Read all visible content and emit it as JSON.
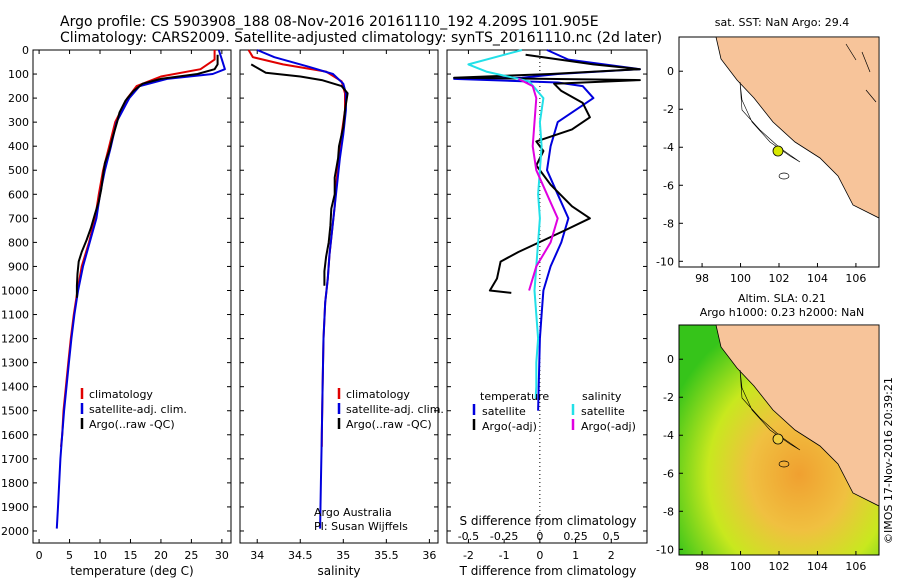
{
  "header": {
    "line1": "Argo profile: CS 5903908_188 08-Nov-2016 20161110_192 4.209S 101.905E",
    "line2": "Climatology: CARS2009. Satellite-adjusted climatology: synTS_20161110.nc (2d later)"
  },
  "colors": {
    "climatology": "#e00000",
    "satellite": "#0000dd",
    "argo": "#000000",
    "sal_sat": "#22e0e8",
    "sal_argo": "#e000e0",
    "land": "#f7c49a",
    "ocean": "#ffffff",
    "ssh_low": "#36c41a",
    "ssh_mid": "#c8e81e",
    "ssh_high": "#f0a030"
  },
  "chart_data": [
    {
      "type": "line",
      "xlabel": "temperature (deg C)",
      "ylim": [
        0,
        2050
      ],
      "xlim": [
        -1,
        31.5
      ],
      "xticks": [
        "0",
        "5",
        "10",
        "15",
        "20",
        "25",
        "30"
      ],
      "yticks": [
        "0",
        "100",
        "200",
        "300",
        "400",
        "500",
        "600",
        "700",
        "800",
        "900",
        "1000",
        "1100",
        "1200",
        "1300",
        "1400",
        "1500",
        "1600",
        "1700",
        "1800",
        "1900",
        "2000"
      ],
      "legend": [
        "climatology",
        "satellite-adj. clim.",
        "Argo(..raw -QC)"
      ],
      "series": [
        {
          "name": "climatology",
          "color": "#e00000",
          "points": [
            [
              28.8,
              0
            ],
            [
              28.8,
              40
            ],
            [
              26.5,
              80
            ],
            [
              20,
              110
            ],
            [
              16,
              150
            ],
            [
              14.5,
              200
            ],
            [
              12.5,
              300
            ],
            [
              11.5,
              400
            ],
            [
              10.5,
              500
            ],
            [
              9.8,
              600
            ],
            [
              9.2,
              700
            ],
            [
              8.2,
              800
            ],
            [
              7,
              900
            ],
            [
              6.3,
              1000
            ],
            [
              5.7,
              1100
            ],
            [
              5.2,
              1200
            ],
            [
              4.8,
              1300
            ],
            [
              4.4,
              1400
            ],
            [
              4,
              1500
            ],
            [
              3.8,
              1600
            ],
            [
              3.6,
              1650
            ]
          ]
        },
        {
          "name": "satellite-adj. clim.",
          "color": "#0000dd",
          "points": [
            [
              29.5,
              0
            ],
            [
              30,
              40
            ],
            [
              30.5,
              80
            ],
            [
              28.5,
              100
            ],
            [
              21,
              120
            ],
            [
              16.5,
              150
            ],
            [
              14.8,
              200
            ],
            [
              12.7,
              300
            ],
            [
              11.8,
              400
            ],
            [
              10.8,
              500
            ],
            [
              10,
              600
            ],
            [
              9.4,
              700
            ],
            [
              8.3,
              800
            ],
            [
              7.2,
              900
            ],
            [
              6.4,
              1000
            ],
            [
              5.8,
              1100
            ],
            [
              5.3,
              1200
            ],
            [
              4.9,
              1300
            ],
            [
              4.5,
              1400
            ],
            [
              4.1,
              1500
            ],
            [
              3.8,
              1600
            ],
            [
              3.5,
              1700
            ],
            [
              3.3,
              1800
            ],
            [
              3.1,
              1900
            ],
            [
              2.9,
              1990
            ]
          ]
        },
        {
          "name": "Argo(..raw -QC)",
          "color": "#000000",
          "points": [
            [
              29.3,
              20
            ],
            [
              29.3,
              60
            ],
            [
              28.8,
              80
            ],
            [
              26,
              100
            ],
            [
              20,
              120
            ],
            [
              17,
              140
            ],
            [
              15.5,
              170
            ],
            [
              14.2,
              210
            ],
            [
              13.2,
              260
            ],
            [
              12.8,
              300
            ],
            [
              12,
              370
            ],
            [
              11.5,
              420
            ],
            [
              10.8,
              470
            ],
            [
              10.5,
              520
            ],
            [
              10.2,
              580
            ],
            [
              9.8,
              630
            ],
            [
              9.2,
              680
            ],
            [
              8.5,
              740
            ],
            [
              7.8,
              790
            ],
            [
              7,
              840
            ],
            [
              6.5,
              880
            ],
            [
              6.3,
              930
            ],
            [
              6.2,
              980
            ],
            [
              6.2,
              1030
            ]
          ]
        }
      ]
    },
    {
      "type": "line",
      "xlabel": "salinity",
      "ylim": [
        0,
        2050
      ],
      "xlim": [
        33.8,
        36.1
      ],
      "xticks": [
        "34",
        "34.5",
        "35",
        "35.5",
        "36"
      ],
      "legend": [
        "climatology",
        "satellite-adj. clim.",
        "Argo(..raw -QC)"
      ],
      "annotation": [
        "Argo Australia",
        "PI: Susan Wijffels"
      ],
      "series": [
        {
          "name": "climatology",
          "color": "#e00000",
          "points": [
            [
              33.9,
              0
            ],
            [
              33.95,
              30
            ],
            [
              34.3,
              60
            ],
            [
              34.8,
              90
            ],
            [
              34.98,
              130
            ],
            [
              35.02,
              180
            ],
            [
              35.02,
              250
            ],
            [
              34.98,
              350
            ],
            [
              34.95,
              450
            ],
            [
              34.92,
              550
            ],
            [
              34.9,
              650
            ],
            [
              34.87,
              750
            ],
            [
              34.84,
              850
            ],
            [
              34.82,
              950
            ],
            [
              34.79,
              1050
            ],
            [
              34.77,
              1200
            ],
            [
              34.76,
              1400
            ],
            [
              34.75,
              1600
            ],
            [
              34.75,
              1650
            ]
          ]
        },
        {
          "name": "satellite-adj. clim.",
          "color": "#0000dd",
          "points": [
            [
              34.0,
              0
            ],
            [
              34.2,
              30
            ],
            [
              34.6,
              70
            ],
            [
              34.88,
              100
            ],
            [
              35.0,
              140
            ],
            [
              35.03,
              180
            ],
            [
              35.03,
              250
            ],
            [
              35.0,
              350
            ],
            [
              34.96,
              450
            ],
            [
              34.93,
              550
            ],
            [
              34.9,
              650
            ],
            [
              34.87,
              750
            ],
            [
              34.84,
              850
            ],
            [
              34.82,
              950
            ],
            [
              34.79,
              1050
            ],
            [
              34.77,
              1200
            ],
            [
              34.76,
              1400
            ],
            [
              34.75,
              1600
            ],
            [
              34.74,
              1800
            ],
            [
              34.73,
              1990
            ]
          ]
        },
        {
          "name": "Argo(..raw -QC)",
          "color": "#000000",
          "points": [
            [
              33.93,
              60
            ],
            [
              34.1,
              95
            ],
            [
              34.5,
              110
            ],
            [
              34.75,
              125
            ],
            [
              34.98,
              150
            ],
            [
              35.05,
              180
            ],
            [
              35.02,
              250
            ],
            [
              35.0,
              320
            ],
            [
              34.95,
              400
            ],
            [
              34.94,
              450
            ],
            [
              34.9,
              530
            ],
            [
              34.9,
              600
            ],
            [
              34.86,
              660
            ],
            [
              34.85,
              730
            ],
            [
              34.83,
              800
            ],
            [
              34.8,
              860
            ],
            [
              34.78,
              920
            ],
            [
              34.78,
              980
            ]
          ]
        }
      ]
    },
    {
      "type": "line",
      "xlabel": "T difference from climatology",
      "xlabel2": "S difference from climatology",
      "ylim": [
        0,
        2050
      ],
      "xlim": [
        -2.6,
        3
      ],
      "xticks": [
        "-2",
        "-1",
        "0",
        "1",
        "2"
      ],
      "xticks2": [
        "-0.5",
        "-0.25",
        "0",
        "0.25",
        "0.5"
      ],
      "legend": {
        "temperature": [
          "satellite",
          "Argo(-adj)"
        ],
        "salinity": [
          "satellite",
          "Argo(-adj)"
        ]
      },
      "series": [
        {
          "name": "satellite",
          "color": "#0000dd",
          "points": [
            [
              0.2,
              0
            ],
            [
              0.8,
              40
            ],
            [
              2.8,
              80
            ],
            [
              0.5,
              100
            ],
            [
              -0.5,
              115
            ],
            [
              -2.4,
              120
            ],
            [
              0.5,
              135
            ],
            [
              1.2,
              150
            ],
            [
              1.5,
              200
            ],
            [
              0.5,
              300
            ],
            [
              0.3,
              400
            ],
            [
              0.2,
              500
            ],
            [
              0.5,
              600
            ],
            [
              0.8,
              700
            ],
            [
              0.6,
              800
            ],
            [
              0.3,
              900
            ],
            [
              0.1,
              1000
            ],
            [
              0.05,
              1100
            ],
            [
              0,
              1200
            ],
            [
              -0.05,
              1500
            ]
          ]
        },
        {
          "name": "Argo(-adj)",
          "color": "#000000",
          "points": [
            [
              -0.4,
              20
            ],
            [
              1.5,
              60
            ],
            [
              2.8,
              80
            ],
            [
              0.3,
              100
            ],
            [
              -2.4,
              115
            ],
            [
              2.8,
              125
            ],
            [
              0.4,
              140
            ],
            [
              0.6,
              170
            ],
            [
              1.2,
              220
            ],
            [
              1.4,
              280
            ],
            [
              0.9,
              330
            ],
            [
              -0.1,
              380
            ],
            [
              0.1,
              420
            ],
            [
              -0.1,
              480
            ],
            [
              0.3,
              560
            ],
            [
              0.9,
              650
            ],
            [
              1.4,
              700
            ],
            [
              0.7,
              750
            ],
            [
              -0.6,
              840
            ],
            [
              -1.1,
              880
            ],
            [
              -1.2,
              950
            ],
            [
              -1.4,
              1000
            ],
            [
              -0.8,
              1010
            ]
          ]
        },
        {
          "name": "satellite",
          "color": "#22e0e8",
          "points": [
            [
              -0.5,
              0
            ],
            [
              -2,
              60
            ],
            [
              -1.5,
              90
            ],
            [
              -0.3,
              130
            ],
            [
              0.1,
              200
            ],
            [
              0.0,
              300
            ],
            [
              0.05,
              400
            ],
            [
              0.0,
              500
            ],
            [
              -0.05,
              600
            ],
            [
              0.0,
              700
            ],
            [
              -0.05,
              800
            ],
            [
              -0.1,
              900
            ],
            [
              -0.15,
              1000
            ],
            [
              -0.1,
              1100
            ],
            [
              -0.05,
              1200
            ],
            [
              -0.1,
              1300
            ],
            [
              -0.1,
              1400
            ],
            [
              -0.12,
              1450
            ]
          ]
        },
        {
          "name": "Argo(-adj)",
          "color": "#e000e0",
          "points": [
            [
              -0.6,
              120
            ],
            [
              -0.2,
              150
            ],
            [
              -0.1,
              200
            ],
            [
              -0.2,
              400
            ],
            [
              -0.1,
              500
            ],
            [
              0.2,
              600
            ],
            [
              0.5,
              700
            ],
            [
              0.3,
              800
            ],
            [
              -0.1,
              900
            ],
            [
              -0.3,
              1000
            ]
          ]
        }
      ]
    }
  ],
  "maps": [
    {
      "title": "sat. SST: NaN Argo: 29.4",
      "xticks": [
        "98",
        "100",
        "102",
        "104",
        "106"
      ],
      "yticks": [
        "0",
        "-2",
        "-4",
        "-6",
        "-8",
        "-10"
      ]
    },
    {
      "title1": "Altim. SLA: 0.21",
      "title2": "Argo h1000: 0.23 h2000: NaN",
      "xticks": [
        "98",
        "100",
        "102",
        "104",
        "106"
      ],
      "yticks": [
        "0",
        "-2",
        "-4",
        "-6",
        "-8",
        "-10"
      ]
    }
  ],
  "credit": "©IMOS 17-Nov-2016 20:39:21"
}
